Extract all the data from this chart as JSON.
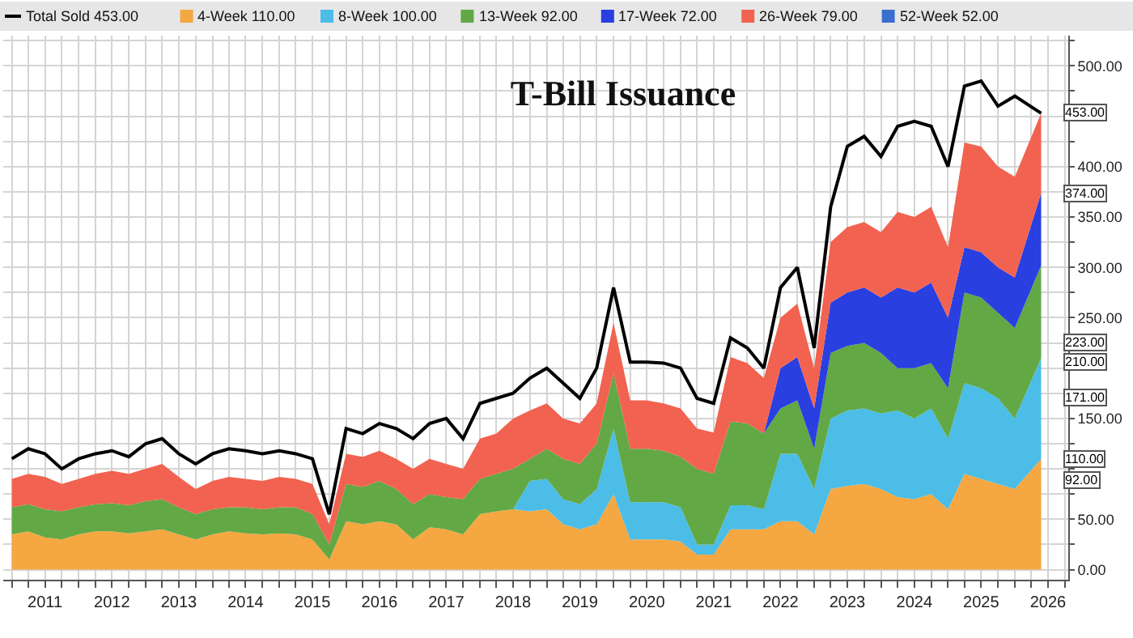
{
  "chart_data": {
    "type": "area",
    "title": "T-Bill Issuance",
    "stacked": true,
    "grid": true,
    "legend": "top left",
    "x": [
      "2011-01",
      "2011-04",
      "2011-07",
      "2011-10",
      "2012-01",
      "2012-04",
      "2012-07",
      "2012-10",
      "2013-01",
      "2013-04",
      "2013-07",
      "2013-10",
      "2014-01",
      "2014-04",
      "2014-07",
      "2014-10",
      "2015-01",
      "2015-04",
      "2015-07",
      "2015-10",
      "2016-01",
      "2016-04",
      "2016-07",
      "2016-10",
      "2017-01",
      "2017-04",
      "2017-07",
      "2017-10",
      "2018-01",
      "2018-04",
      "2018-07",
      "2018-10",
      "2019-01",
      "2019-04",
      "2019-07",
      "2019-10",
      "2020-01",
      "2020-04",
      "2020-07",
      "2020-10",
      "2021-01",
      "2021-04",
      "2021-07",
      "2021-10",
      "2022-01",
      "2022-04",
      "2022-07",
      "2022-10",
      "2023-01",
      "2023-04",
      "2023-07",
      "2023-10",
      "2024-01",
      "2024-04",
      "2024-07",
      "2024-10",
      "2025-01",
      "2025-04",
      "2025-07",
      "2025-10",
      "2026-01",
      "2026-05-25"
    ],
    "series": [
      {
        "name": "Total Sold 453.00",
        "type": "line",
        "color": "#000000",
        "values": [
          110,
          120,
          115,
          100,
          110,
          115,
          118,
          112,
          125,
          130,
          115,
          105,
          115,
          120,
          118,
          115,
          118,
          115,
          110,
          55,
          140,
          135,
          145,
          140,
          130,
          145,
          150,
          130,
          165,
          170,
          175,
          190,
          200,
          185,
          170,
          200,
          280,
          206,
          206,
          205,
          200,
          170,
          165,
          230,
          220,
          200,
          280,
          300,
          220,
          360,
          420,
          430,
          410,
          440,
          445,
          440,
          400,
          480,
          485,
          460,
          470,
          453
        ]
      },
      {
        "name": "4-Week 110.00",
        "color": "#f5a742",
        "values": [
          35,
          38,
          32,
          30,
          35,
          38,
          38,
          36,
          38,
          40,
          35,
          30,
          35,
          38,
          36,
          35,
          36,
          35,
          30,
          10,
          48,
          45,
          48,
          45,
          30,
          42,
          40,
          35,
          55,
          58,
          60,
          58,
          60,
          45,
          40,
          45,
          75,
          30,
          30,
          30,
          28,
          15,
          15,
          40,
          40,
          40,
          48,
          48,
          35,
          80,
          83,
          85,
          80,
          72,
          70,
          75,
          60,
          95,
          90,
          85,
          80,
          110
        ]
      },
      {
        "name": "8-Week 100.00",
        "color": "#4bbde6",
        "values": [
          0,
          0,
          0,
          0,
          0,
          0,
          0,
          0,
          0,
          0,
          0,
          0,
          0,
          0,
          0,
          0,
          0,
          0,
          0,
          0,
          0,
          0,
          0,
          0,
          0,
          0,
          0,
          0,
          0,
          0,
          0,
          30,
          30,
          25,
          25,
          35,
          65,
          37,
          37,
          37,
          34,
          10,
          10,
          24,
          24,
          20,
          67,
          67,
          45,
          70,
          75,
          75,
          75,
          86,
          80,
          85,
          70,
          90,
          90,
          85,
          70,
          100
        ]
      },
      {
        "name": "13-Week 92.00",
        "color": "#62a845",
        "values": [
          27,
          27,
          28,
          28,
          27,
          27,
          28,
          28,
          30,
          30,
          27,
          25,
          25,
          24,
          26,
          25,
          26,
          27,
          25,
          15,
          37,
          37,
          40,
          35,
          35,
          33,
          32,
          35,
          35,
          37,
          40,
          22,
          30,
          40,
          40,
          45,
          55,
          53,
          53,
          51,
          50,
          75,
          70,
          83,
          81,
          75,
          45,
          53,
          40,
          65,
          64,
          65,
          60,
          42,
          50,
          45,
          50,
          90,
          90,
          85,
          90,
          92
        ]
      },
      {
        "name": "17-Week 72.00",
        "color": "#2a3fe0",
        "values": [
          0,
          0,
          0,
          0,
          0,
          0,
          0,
          0,
          0,
          0,
          0,
          0,
          0,
          0,
          0,
          0,
          0,
          0,
          0,
          0,
          0,
          0,
          0,
          0,
          0,
          0,
          0,
          0,
          0,
          0,
          0,
          0,
          0,
          0,
          0,
          0,
          0,
          0,
          0,
          0,
          0,
          0,
          0,
          0,
          0,
          0,
          40,
          43,
          40,
          50,
          53,
          55,
          55,
          80,
          75,
          80,
          70,
          45,
          45,
          45,
          50,
          72
        ]
      },
      {
        "name": "26-Week 79.00",
        "color": "#f26250",
        "values": [
          28,
          30,
          32,
          27,
          28,
          30,
          32,
          31,
          32,
          35,
          30,
          25,
          28,
          30,
          28,
          28,
          30,
          28,
          30,
          20,
          30,
          30,
          30,
          30,
          35,
          35,
          33,
          30,
          40,
          40,
          50,
          48,
          45,
          40,
          40,
          40,
          50,
          48,
          48,
          47,
          48,
          40,
          41,
          64,
          60,
          55,
          50,
          53,
          40,
          60,
          65,
          65,
          65,
          75,
          75,
          75,
          70,
          104,
          105,
          100,
          100,
          79
        ]
      },
      {
        "name": "52-Week 52.00",
        "color": "#3a6fd0",
        "values": [
          null,
          null,
          null,
          null,
          null,
          null,
          null,
          null,
          null,
          null,
          null,
          null,
          null,
          null,
          null,
          null,
          null,
          null,
          null,
          null,
          null,
          null,
          null,
          null,
          null,
          null,
          null,
          null,
          null,
          null,
          null,
          null,
          null,
          null,
          null,
          null,
          null,
          null,
          null,
          null,
          null,
          null,
          null,
          null,
          null,
          null,
          null,
          null,
          null,
          null,
          null,
          null,
          null,
          null,
          null,
          null,
          null,
          null,
          null,
          null,
          null,
          null
        ]
      }
    ],
    "annotations": [
      {
        "text": "453.00",
        "x": "2026-05-25",
        "y": 453
      },
      {
        "text": "374.00",
        "x": "2026-05-25",
        "y": 374
      },
      {
        "text": "223.00",
        "x": "2026-05-25",
        "y": 223
      },
      {
        "text": "210.00",
        "x": "2026-05-25",
        "y": 210
      },
      {
        "text": "171.00",
        "x": "2026-05-25",
        "y": 171
      },
      {
        "text": "110.00",
        "x": "2026-05-25",
        "y": 110
      },
      "92.00"
    ],
    "xlim": [
      "2010-11-15",
      "2026-10-20"
    ],
    "xticks": [
      {
        "value": "2011-01-01",
        "label": null
      },
      {
        "value": "2011-04-01",
        "label": null
      },
      {
        "value": "2011-07-01",
        "label": "2011"
      },
      {
        "value": "2011-10-01",
        "label": null
      },
      {
        "value": "2012-01-01",
        "label": null
      },
      {
        "value": "2012-04-01",
        "label": null
      },
      {
        "value": "2012-07-01",
        "label": "2012"
      },
      {
        "value": "2012-10-01",
        "label": null
      },
      {
        "value": "2013-01-01",
        "label": null
      },
      {
        "value": "2013-04-01",
        "label": null
      },
      {
        "value": "2013-07-01",
        "label": "2013"
      },
      {
        "value": "2013-10-01",
        "label": null
      },
      {
        "value": "2014-01-01",
        "label": null
      },
      {
        "value": "2014-04-01",
        "label": null
      },
      {
        "value": "2014-07-01",
        "label": "2014"
      },
      {
        "value": "2014-10-01",
        "label": null
      },
      {
        "value": "2015-01-01",
        "label": null
      },
      {
        "value": "2015-04-01",
        "label": null
      },
      {
        "value": "2015-07-01",
        "label": "2015"
      },
      {
        "value": "2015-10-01",
        "label": null
      },
      {
        "value": "2016-01-01",
        "label": null
      },
      {
        "value": "2016-04-01",
        "label": null
      },
      {
        "value": "2016-07-01",
        "label": "2016"
      },
      {
        "value": "2016-10-01",
        "label": null
      },
      {
        "value": "2017-01-01",
        "label": null
      },
      {
        "value": "2017-04-01",
        "label": null
      },
      {
        "value": "2017-07-01",
        "label": "2017"
      },
      {
        "value": "2017-10-01",
        "label": null
      },
      {
        "value": "2018-01-01",
        "label": null
      },
      {
        "value": "2018-04-01",
        "label": null
      },
      {
        "value": "2018-07-01",
        "label": "2018"
      },
      {
        "value": "2018-10-01",
        "label": null
      },
      {
        "value": "2019-01-01",
        "label": null
      },
      {
        "value": "2019-04-01",
        "label": null
      },
      {
        "value": "2019-07-01",
        "label": "2019"
      },
      {
        "value": "2019-10-01",
        "label": null
      },
      {
        "value": "2020-01-01",
        "label": null
      },
      {
        "value": "2020-04-01",
        "label": null
      },
      {
        "value": "2020-07-01",
        "label": "2020"
      },
      {
        "value": "2020-10-01",
        "label": null
      },
      {
        "value": "2021-01-01",
        "label": null
      },
      {
        "value": "2021-04-01",
        "label": null
      },
      {
        "value": "2021-07-01",
        "label": "2021"
      },
      {
        "value": "2021-10-01",
        "label": null
      },
      {
        "value": "2022-01-01",
        "label": null
      },
      {
        "value": "2022-04-01",
        "label": null
      },
      {
        "value": "2022-07-01",
        "label": "2022"
      },
      {
        "value": "2022-10-01",
        "label": null
      },
      {
        "value": "2023-01-01",
        "label": null
      },
      {
        "value": "2023-04-01",
        "label": null
      },
      {
        "value": "2023-07-01",
        "label": "2023"
      },
      {
        "value": "2023-10-01",
        "label": null
      },
      {
        "value": "2024-01-01",
        "label": null
      },
      {
        "value": "2024-04-01",
        "label": null
      },
      {
        "value": "2024-07-01",
        "label": "2024"
      },
      {
        "value": "2024-10-01",
        "label": null
      },
      {
        "value": "2025-01-01",
        "label": null
      },
      {
        "value": "2025-04-01",
        "label": null
      },
      {
        "value": "2025-07-01",
        "label": "2025"
      },
      {
        "value": "2025-10-01",
        "label": null
      },
      {
        "value": "2026-01-01",
        "label": null
      },
      {
        "value": "2026-04-01",
        "label": null
      },
      {
        "value": "2026-07-01",
        "label": "2026"
      },
      {
        "value": "2026-10-01",
        "label": null
      }
    ],
    "ylim": [
      -10,
      530
    ],
    "yticks": [
      {
        "value": 0,
        "label": "0.00"
      },
      {
        "value": 25,
        "label": null
      },
      {
        "value": 50,
        "label": "50.00"
      },
      {
        "value": 75,
        "label": null
      },
      {
        "value": 100,
        "label": null
      },
      {
        "value": 125,
        "label": null
      },
      {
        "value": 150,
        "label": "150.00"
      },
      {
        "value": 175,
        "label": null
      },
      {
        "value": 200,
        "label": null
      },
      {
        "value": 225,
        "label": null
      },
      {
        "value": 250,
        "label": "250.00"
      },
      {
        "value": 275,
        "label": null
      },
      {
        "value": 300,
        "label": "300.00"
      },
      {
        "value": 325,
        "label": null
      },
      {
        "value": 350,
        "label": "350.00"
      },
      {
        "value": 375,
        "label": null
      },
      {
        "value": 400,
        "label": "400.00"
      },
      {
        "value": 425,
        "label": null
      },
      {
        "value": 450,
        "label": null
      },
      {
        "value": 475,
        "label": null
      },
      {
        "value": 500,
        "label": "500.00"
      },
      {
        "value": 525,
        "label": null
      }
    ]
  }
}
